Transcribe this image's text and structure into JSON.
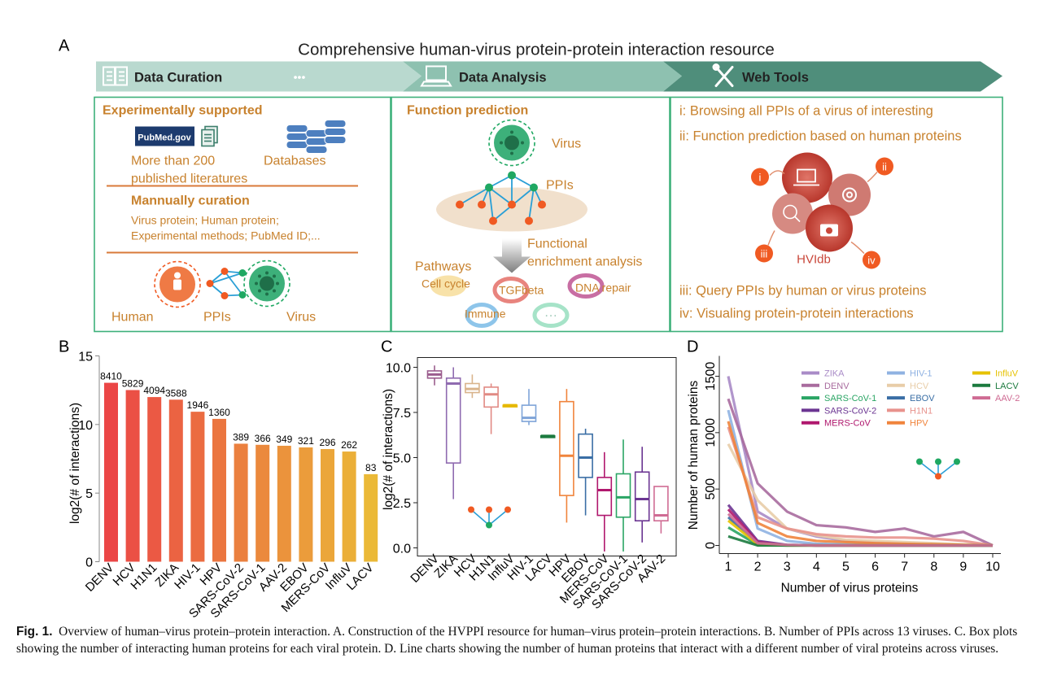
{
  "panel_a": {
    "letter": "A",
    "title": "Comprehensive human-virus protein-protein interaction resource",
    "stages": [
      "Data Curation",
      "Data Analysis",
      "Web Tools"
    ],
    "ellipsis": "•••",
    "curation": {
      "heading": "Experimentally supported",
      "pubmed_logo": "PubMed.gov",
      "lit_line1": "More than 200",
      "lit_line2": "published literatures",
      "databases": "Databases",
      "manual_heading": "Mannually curation",
      "manual_line1": "Virus protein; Human protein;",
      "manual_line2": "Experimental methods; PubMed ID;...",
      "human": "Human",
      "ppis": "PPIs",
      "virus": "Virus"
    },
    "analysis": {
      "heading": "Function prediction",
      "virus": "Virus",
      "ppis": "PPIs",
      "functional_line1": "Functional",
      "functional_line2": "enrichment analysis",
      "pathways": "Pathways",
      "cell_cycle": "Cell cycle",
      "tgfbeta": "TGFbeta",
      "dna_repair": "DNA repair",
      "immune": "Immune",
      "more": "···"
    },
    "tools": {
      "item1": "i: Browsing all PPIs of a virus of interesting",
      "item2": "ii: Function prediction based on human proteins",
      "item3": "iii: Query PPIs by human or virus proteins",
      "item4": "iv: Visualing protein-protein interactions",
      "badges": [
        "i",
        "ii",
        "iii",
        "iv"
      ],
      "hub": "HVIdb"
    }
  },
  "colors": {
    "green": "#3db07a",
    "orange_text": "#c8822e",
    "node_orange": "#f05a22",
    "node_green": "#1fa862",
    "edge_blue": "#2a9fd6",
    "hub_red": "#c9473a"
  },
  "chart_data": [
    {
      "panel": "B",
      "type": "bar",
      "ylabel": "log2(# of interactions)",
      "ylim": [
        0,
        15
      ],
      "yticks": [
        0,
        5,
        10,
        15
      ],
      "categories": [
        "DENV",
        "HCV",
        "H1N1",
        "ZIKA",
        "HIV-1",
        "HPV",
        "SARS-CoV-2",
        "SARS-CoV-1",
        "AAV-2",
        "EBOV",
        "MERS-CoV",
        "InfluV",
        "LACV"
      ],
      "labels": [
        "8410",
        "5829",
        "4094",
        "3588",
        "1946",
        "1360",
        "389",
        "366",
        "349",
        "321",
        "296",
        "262",
        "83"
      ],
      "values": [
        13.04,
        12.51,
        12.0,
        11.81,
        10.93,
        10.41,
        8.6,
        8.52,
        8.45,
        8.33,
        8.21,
        8.03,
        6.38
      ]
    },
    {
      "panel": "C",
      "type": "box",
      "ylabel": "log2(# of interactions)",
      "ylim": [
        0,
        10
      ],
      "yticks": [
        "0.0",
        "2.5",
        "5.0",
        "7.5",
        "10.0"
      ],
      "categories": [
        "DENV",
        "ZIKA",
        "HCV",
        "H1N1",
        "InfluV",
        "HIV-1",
        "LACV",
        "HPV",
        "EBOV",
        "MERS-CoV",
        "SARS-CoV-1",
        "SARS-CoV-2",
        "AAV-2"
      ],
      "colors": [
        "#9b5d8e",
        "#8f6bb0",
        "#d9b48c",
        "#e18a84",
        "#e6b800",
        "#7fa4d8",
        "#1b7a3e",
        "#f0843c",
        "#3a6ea5",
        "#b0186e",
        "#2aa564",
        "#6b3592",
        "#cf6b93"
      ],
      "boxes": [
        {
          "min": 9.0,
          "q1": 9.4,
          "median": 9.6,
          "q3": 9.8,
          "max": 10.1
        },
        {
          "min": 2.7,
          "q1": 4.7,
          "median": 9.1,
          "q3": 9.4,
          "max": 10.0
        },
        {
          "min": 8.3,
          "q1": 8.6,
          "median": 8.8,
          "q3": 9.1,
          "max": 9.6
        },
        {
          "min": 6.3,
          "q1": 7.8,
          "median": 8.5,
          "q3": 8.9,
          "max": 9.1
        },
        {
          "min": 7.9,
          "q1": 7.9,
          "median": 7.9,
          "q3": 7.9,
          "max": 7.9
        },
        {
          "min": 6.8,
          "q1": 7.0,
          "median": 7.2,
          "q3": 7.9,
          "max": 8.8
        },
        {
          "min": 6.2,
          "q1": 6.2,
          "median": 6.2,
          "q3": 6.2,
          "max": 6.2
        },
        {
          "min": 1.4,
          "q1": 2.9,
          "median": 5.1,
          "q3": 8.1,
          "max": 8.8
        },
        {
          "min": 1.8,
          "q1": 3.9,
          "median": 5.0,
          "q3": 6.3,
          "max": 6.6
        },
        {
          "min": -0.2,
          "q1": 1.8,
          "median": 3.2,
          "q3": 3.9,
          "max": 5.3
        },
        {
          "min": -0.2,
          "q1": 1.7,
          "median": 2.8,
          "q3": 4.1,
          "max": 6.0
        },
        {
          "min": 0.3,
          "q1": 1.5,
          "median": 2.7,
          "q3": 4.2,
          "max": 5.6
        },
        {
          "min": 0.8,
          "q1": 1.5,
          "median": 1.8,
          "q3": 3.4,
          "max": 3.4
        }
      ]
    },
    {
      "panel": "D",
      "type": "line",
      "xlabel": "Number of virus proteins",
      "ylabel": "Number of human proteins",
      "xlim": [
        1,
        10
      ],
      "ylim": [
        0,
        1500
      ],
      "xticks": [
        1,
        2,
        3,
        4,
        5,
        6,
        7,
        8,
        9,
        10
      ],
      "yticks": [
        0,
        500,
        1000,
        1500
      ],
      "legend_position": "top-right",
      "x": [
        1,
        2,
        3,
        4,
        5,
        6,
        7,
        8,
        9,
        10
      ],
      "series": [
        {
          "name": "ZIKA",
          "color": "#a98bc7",
          "values": [
            1500,
            300,
            150,
            80,
            40,
            25,
            15,
            10,
            5,
            0
          ]
        },
        {
          "name": "DENV",
          "color": "#a86b9e",
          "values": [
            1300,
            550,
            300,
            180,
            160,
            120,
            150,
            80,
            120,
            0
          ]
        },
        {
          "name": "SARS-CoV-1",
          "color": "#2aa564",
          "values": [
            160,
            5,
            0,
            0,
            0,
            0,
            0,
            0,
            0,
            0
          ]
        },
        {
          "name": "SARS-CoV-2",
          "color": "#6b3592",
          "values": [
            360,
            40,
            5,
            0,
            0,
            0,
            0,
            0,
            0,
            0
          ]
        },
        {
          "name": "MERS-CoV",
          "color": "#b0186e",
          "values": [
            320,
            30,
            3,
            0,
            0,
            0,
            0,
            0,
            0,
            0
          ]
        },
        {
          "name": "HIV-1",
          "color": "#8fb2e2",
          "values": [
            1200,
            150,
            40,
            15,
            10,
            5,
            3,
            2,
            1,
            0
          ]
        },
        {
          "name": "HCV",
          "color": "#e8cda8",
          "values": [
            900,
            400,
            150,
            90,
            50,
            40,
            30,
            20,
            10,
            0
          ]
        },
        {
          "name": "EBOV",
          "color": "#3a6ea5",
          "values": [
            250,
            20,
            5,
            0,
            0,
            0,
            0,
            0,
            0,
            0
          ]
        },
        {
          "name": "H1N1",
          "color": "#e8928c",
          "values": [
            1050,
            250,
            150,
            100,
            80,
            70,
            70,
            60,
            40,
            0
          ]
        },
        {
          "name": "HPV",
          "color": "#f0843c",
          "values": [
            1100,
            200,
            80,
            40,
            30,
            20,
            15,
            10,
            5,
            0
          ]
        },
        {
          "name": "InfluV",
          "color": "#e6c200",
          "values": [
            220,
            10,
            0,
            0,
            0,
            0,
            0,
            0,
            0,
            0
          ]
        },
        {
          "name": "LACV",
          "color": "#1b7a3e",
          "values": [
            80,
            0,
            0,
            0,
            0,
            0,
            0,
            0,
            0,
            0
          ]
        },
        {
          "name": "AAV-2",
          "color": "#cf6b93",
          "values": [
            280,
            20,
            5,
            0,
            0,
            0,
            0,
            0,
            0,
            0
          ]
        }
      ]
    }
  ],
  "panel_letters": {
    "b": "B",
    "c": "C",
    "d": "D"
  },
  "caption": {
    "label": "Fig. 1.",
    "text": "Overview of human–virus protein–protein interaction. A. Construction of the HVPPI resource for human–virus protein–protein interactions. B. Number of PPIs across 13 viruses. C. Box plots showing the number of interacting human proteins for each viral protein. D. Line charts showing the number of human proteins that interact with a different number of viral proteins across viruses."
  }
}
